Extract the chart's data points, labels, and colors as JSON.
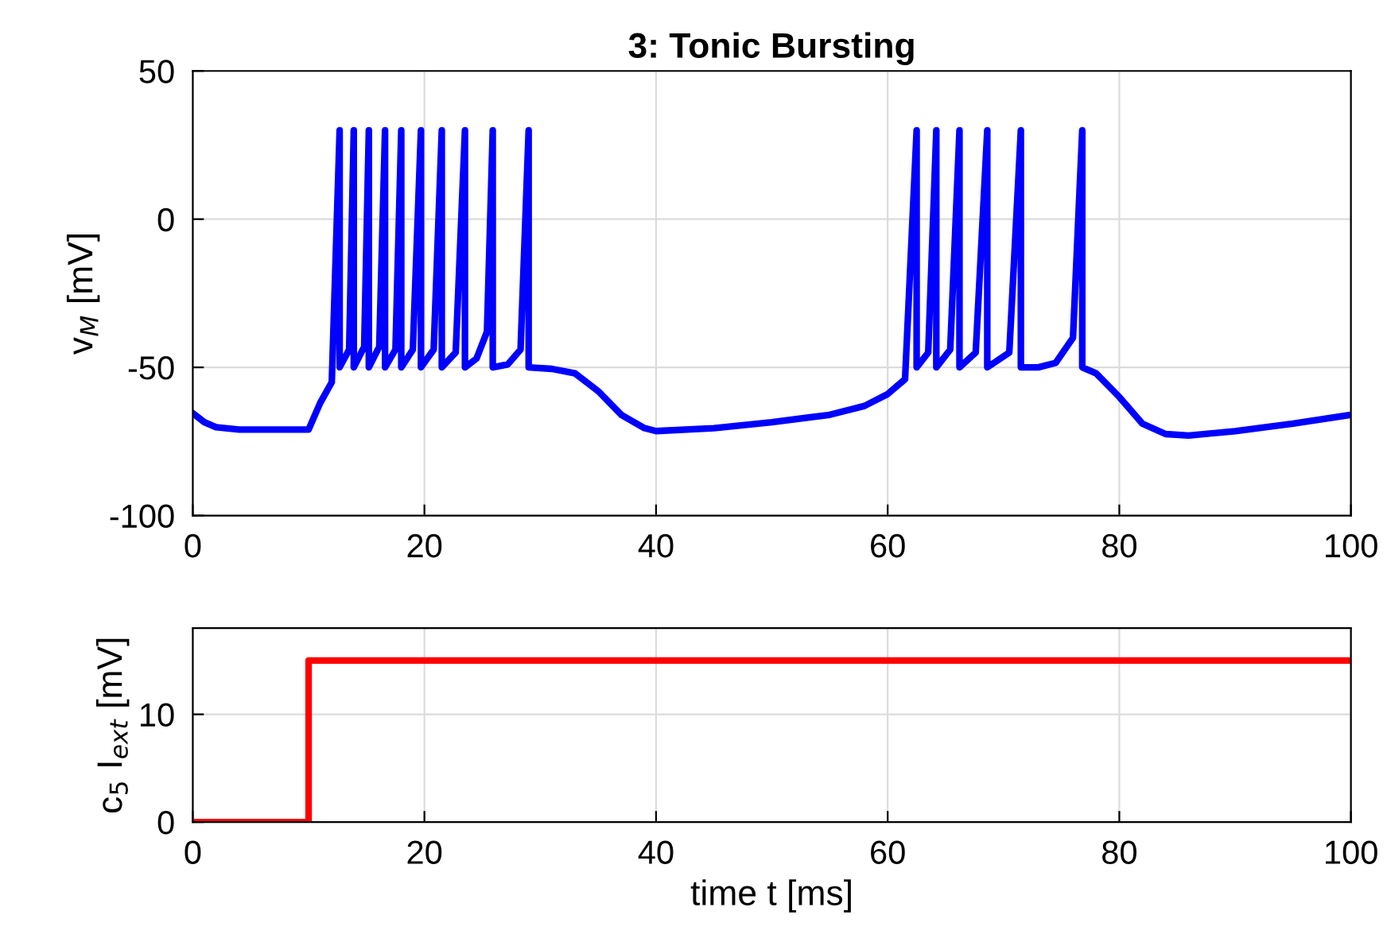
{
  "chart_data": [
    {
      "type": "line",
      "title": "3: Tonic Bursting",
      "ylabel": "v$_{M}$ [mV]",
      "xlim": [
        0,
        100
      ],
      "ylim": [
        -100,
        50
      ],
      "xticks": [
        0,
        20,
        40,
        60,
        80,
        100
      ],
      "yticks": [
        -100,
        -50,
        0,
        50
      ],
      "grid": true,
      "series": [
        {
          "color": "#0000ff",
          "x": [
            0,
            1,
            2,
            4,
            10,
            11,
            12,
            12.68,
            12.68,
            13.5,
            13.9,
            13.9,
            14.8,
            15.2,
            15.2,
            16.1,
            16.6,
            16.6,
            17.5,
            18.0,
            18.0,
            19.0,
            19.7,
            19.7,
            20.8,
            21.5,
            21.5,
            22.7,
            23.5,
            23.5,
            24.5,
            25.4,
            25.9,
            25.9,
            27.2,
            28.3,
            29.0,
            29.0,
            31,
            33,
            35,
            37,
            39,
            40,
            45,
            50,
            55,
            58,
            60,
            61.5,
            62.5,
            62.5,
            63.5,
            64.2,
            64.2,
            65.4,
            66.2,
            66.2,
            67.6,
            68.6,
            68.6,
            70.5,
            71.5,
            71.5,
            73,
            74.5,
            76,
            76.8,
            76.8,
            78,
            80,
            82,
            84,
            86,
            90,
            95,
            100
          ],
          "values": [
            -65.5,
            -68.5,
            -70.2,
            -71,
            -71,
            -62,
            -55,
            30,
            -50,
            -44,
            30,
            -50,
            -43,
            30,
            -50,
            -43,
            30,
            -50,
            -44,
            30,
            -50,
            -44,
            30,
            -50,
            -44,
            30,
            -50,
            -45,
            30,
            -50,
            -47,
            -38,
            30,
            -50,
            -49,
            -44,
            30,
            -50,
            -50.5,
            -52,
            -58,
            -66,
            -70.5,
            -71.5,
            -70.5,
            -68.5,
            -66,
            -63,
            -59,
            -54,
            30,
            -50,
            -45,
            30,
            -50,
            -44,
            30,
            -50,
            -45,
            30,
            -50,
            -45,
            30,
            -50,
            -50,
            -48.5,
            -40,
            30,
            -50,
            -52,
            -60,
            -69,
            -72.5,
            -73,
            -71.5,
            -69,
            -66
          ]
        }
      ]
    },
    {
      "type": "line",
      "xlabel": "time t [ms]",
      "ylabel": "c$_{5}$ I$_{ext}$ [mV]",
      "xlim": [
        0,
        100
      ],
      "ylim": [
        0,
        18
      ],
      "xticks": [
        0,
        20,
        40,
        60,
        80,
        100
      ],
      "yticks": [
        0,
        10
      ],
      "grid": true,
      "series": [
        {
          "color": "#ff0000",
          "x": [
            0,
            10,
            10,
            100
          ],
          "values": [
            0,
            0,
            15,
            15
          ]
        }
      ]
    }
  ]
}
